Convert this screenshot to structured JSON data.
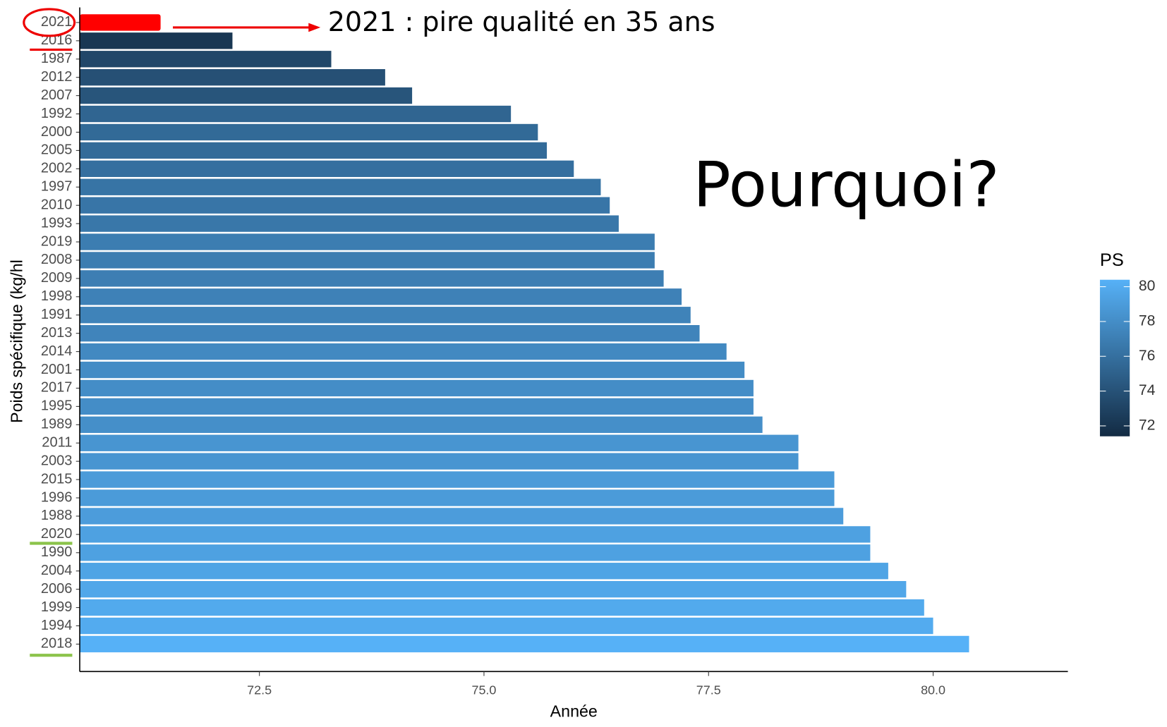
{
  "chart_data": {
    "type": "bar",
    "orientation": "horizontal",
    "annotation": "2021 : pire qualité en 35 ans",
    "callout": "Pourquoi?",
    "y_label": "Poids spécifique (kg/hl",
    "x_label": "Année",
    "categories": [
      "2021",
      "2016",
      "1987",
      "2012",
      "2007",
      "1992",
      "2000",
      "2005",
      "2002",
      "1997",
      "2010",
      "1993",
      "2019",
      "2008",
      "2009",
      "1998",
      "1991",
      "2013",
      "2014",
      "2001",
      "2017",
      "1995",
      "1989",
      "2011",
      "2003",
      "2015",
      "1996",
      "1988",
      "2020",
      "1990",
      "2004",
      "2006",
      "1999",
      "1994",
      "2018"
    ],
    "values": [
      71.4,
      72.2,
      73.3,
      73.9,
      74.2,
      75.3,
      75.6,
      75.7,
      76.0,
      76.3,
      76.4,
      76.5,
      76.9,
      76.9,
      77.0,
      77.2,
      77.3,
      77.4,
      77.7,
      77.9,
      78.0,
      78.0,
      78.1,
      78.5,
      78.5,
      78.9,
      78.9,
      79.0,
      79.3,
      79.3,
      79.5,
      79.7,
      79.9,
      80.0,
      80.4
    ],
    "xlim": [
      70.5,
      81.5
    ],
    "xticks": [
      72.5,
      {
        "value": 75,
        "label": "75.0"
      },
      77.5,
      {
        "value": 80,
        "label": "80.0"
      }
    ],
    "color_low": "#132B43",
    "color_high": "#56B1F7",
    "highlight": "2021",
    "highlight_color": "#ff0000",
    "legend_title": "PS",
    "legend_ticks": [
      72,
      74,
      76,
      78,
      80
    ]
  }
}
